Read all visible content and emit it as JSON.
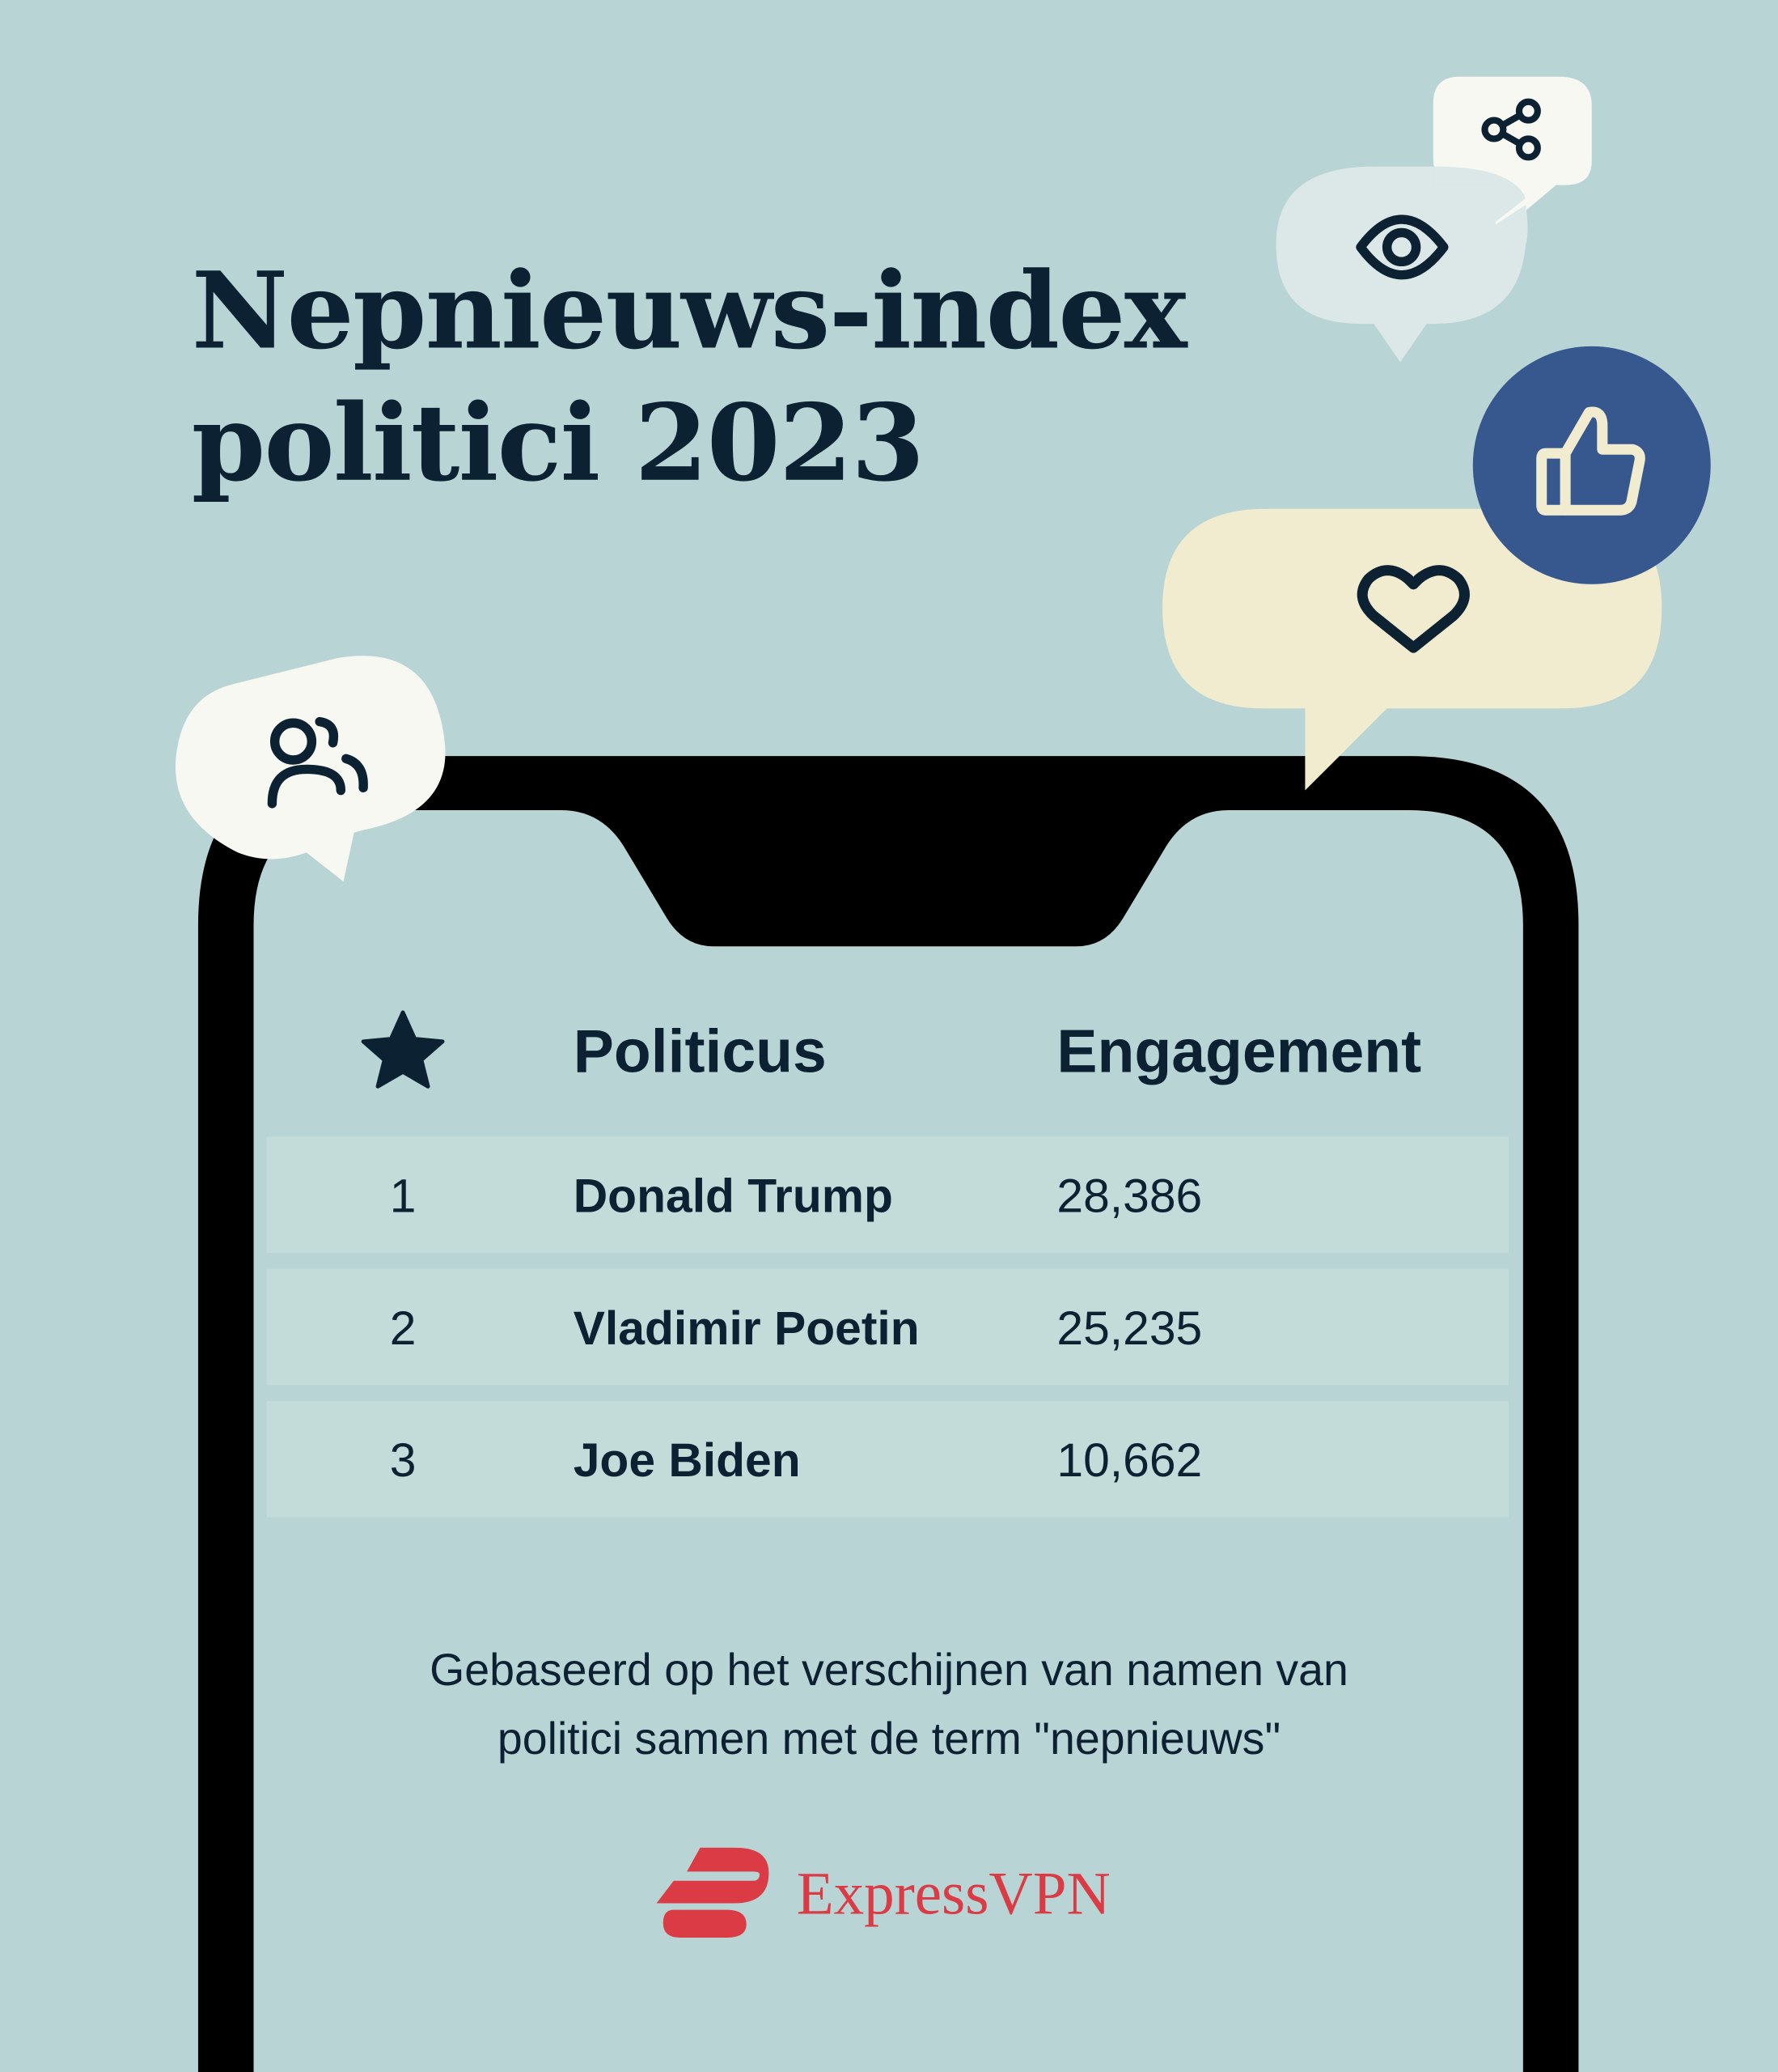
{
  "title": {
    "line1": "Nepnieuws-index",
    "line2": "politici 2023"
  },
  "table": {
    "header_icon": "star-icon",
    "columns": [
      "Politicus",
      "Engagement"
    ],
    "rows": [
      {
        "rank": "1",
        "name": "Donald Trump",
        "engagement": "28,386"
      },
      {
        "rank": "2",
        "name": "Vladimir Poetin",
        "engagement": "25,235"
      },
      {
        "rank": "3",
        "name": "Joe Biden",
        "engagement": "10,662"
      }
    ]
  },
  "footnote": {
    "line1": "Gebaseerd op het verschijnen van namen van",
    "line2": "politici samen met de term \"nepnieuws\""
  },
  "logo": {
    "text": "ExpressVPN",
    "color": "#db3b45"
  },
  "icons": [
    "share-icon",
    "eye-icon",
    "thumbs-up-icon",
    "heart-icon",
    "users-icon"
  ],
  "colors": {
    "background": "#b9d4d4",
    "text": "#0c2233",
    "like_bubble": "#37578f",
    "heart_bubble": "#f1ebcf"
  }
}
